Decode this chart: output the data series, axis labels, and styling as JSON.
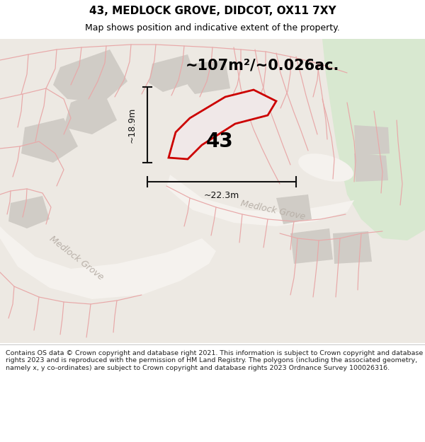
{
  "title": "43, MEDLOCK GROVE, DIDCOT, OX11 7XY",
  "subtitle": "Map shows position and indicative extent of the property.",
  "area_label": "~107m²/~0.026ac.",
  "number_label": "43",
  "dim_width": "~22.3m",
  "dim_height": "~18.9m",
  "road_label_lower": "Medlock Grove",
  "road_label_upper": "Medlock Grove",
  "footer": "Contains OS data © Crown copyright and database right 2021. This information is subject to Crown copyright and database rights 2023 and is reproduced with the permission of HM Land Registry. The polygons (including the associated geometry, namely x, y co-ordinates) are subject to Crown copyright and database rights 2023 Ordnance Survey 100026316.",
  "bg_color": "#ede9e3",
  "green_color": "#d8e8d0",
  "parcel_line_color": "#e8a8a8",
  "plot_edge_color": "#cc0000",
  "plot_fill_color": "#f0e8e8",
  "grey_block_color": "#d0ccc6",
  "road_white": "#f5f2ee",
  "road_text_color": "#b8b0a8",
  "dim_color": "#111111",
  "white": "#ffffff",
  "title_fontsize": 11,
  "subtitle_fontsize": 9,
  "area_fontsize": 15,
  "number_fontsize": 20,
  "dim_fontsize": 9,
  "road_fontsize": 9,
  "footer_fontsize": 6.8
}
